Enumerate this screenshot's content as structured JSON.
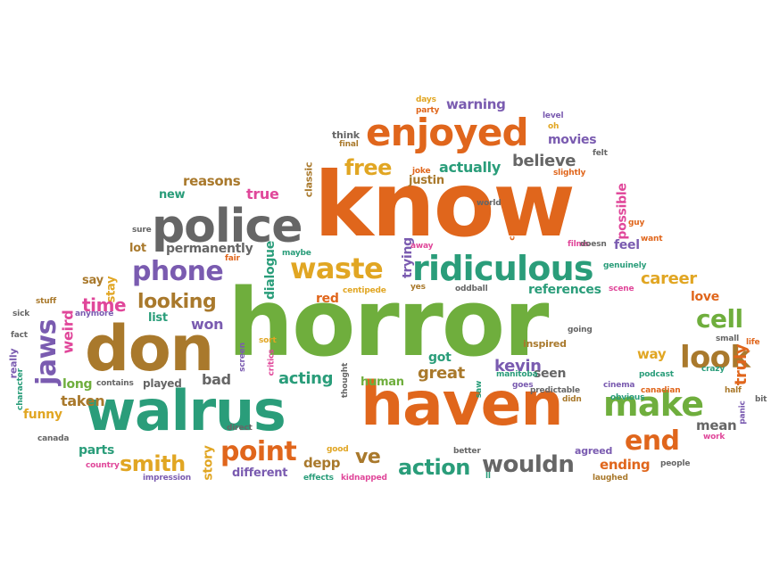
{
  "colors": {
    "orange": "#e0661c",
    "green": "#6fae3d",
    "teal": "#2a9d7a",
    "brown": "#a9792c",
    "gray": "#666666",
    "pink": "#e0479a",
    "purple": "#7a5bb0",
    "gold": "#e1a623"
  },
  "words": [
    "horror",
    "know",
    "haven",
    "walrus",
    "don",
    "police",
    "enjoyed",
    "ridiculous",
    "make",
    "waste",
    "phone",
    "jaws",
    "end",
    "look",
    "cell",
    "point",
    "wouldn",
    "action",
    "smith",
    "looking",
    "free",
    "believe",
    "actually",
    "warning",
    "justin",
    "reasons",
    "true",
    "new",
    "permanently",
    "lot",
    "stay",
    "time",
    "say",
    "weird",
    "list",
    "won",
    "taken",
    "funny",
    "parts",
    "long",
    "played",
    "bad",
    "acting",
    "got",
    "great",
    "kevin",
    "seen",
    "human",
    "depp",
    "ve",
    "different",
    "story",
    "ending",
    "agreed",
    "mean",
    "truly",
    "way",
    "love",
    "career",
    "references",
    "inspired",
    "trying",
    "red",
    "dialogue",
    "possible",
    "movies",
    "party",
    "days",
    "think",
    "final",
    "classic",
    "comedy",
    "podcast",
    "cinema",
    "canadian",
    "crazy",
    "canada",
    "country",
    "impression",
    "effects",
    "kidnapped",
    "better",
    "good",
    "people",
    "laughed",
    "half",
    "bit",
    "work",
    "really",
    "character",
    "fact",
    "sick",
    "stuff",
    "anymore",
    "contains",
    "screen",
    "critics",
    "direct",
    "saw",
    "manitoba",
    "goes",
    "thought",
    "sort",
    "predictable",
    "didn",
    "obvious",
    "panic",
    "small",
    "life",
    "genuinely",
    "scene",
    "films",
    "doesn",
    "feel",
    "guy",
    "slightly",
    "felt",
    "level",
    "oh",
    "joke",
    "world",
    "sure",
    "fair",
    "away",
    "yes",
    "oddball",
    "centipede",
    "going",
    "maybe",
    "ll",
    "want"
  ]
}
